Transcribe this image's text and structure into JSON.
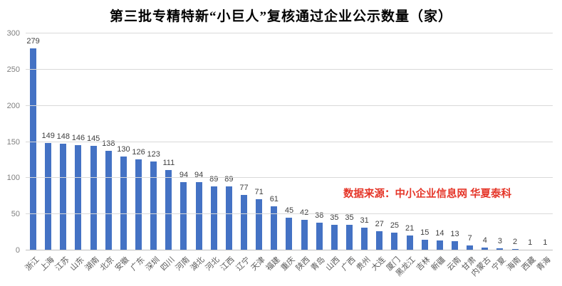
{
  "title": "第三批专精特新“小巨人”复核通过企业公示数量（家）",
  "source_note": "数据来源：中小企业信息网 华夏泰科",
  "colors": {
    "bar": "#4472c4",
    "source_note": "#e53528",
    "grid": "#d9d9d9",
    "axis_line": "#bfbfbf",
    "y_tick_label": "#7f7f7f",
    "category_label": "#595959",
    "value_label": "#3f3f3f",
    "title": "#000000",
    "background": "#ffffff"
  },
  "chart_data": {
    "type": "bar",
    "title": "第三批专精特新“小巨人”复核通过企业公示数量（家）",
    "xlabel": "",
    "ylabel": "",
    "ylim": [
      0,
      300
    ],
    "yticks": [
      0,
      50,
      100,
      150,
      200,
      250,
      300
    ],
    "grid": true,
    "value_labels": true,
    "legend": false,
    "annotation": "数据来源：中小企业信息网 华夏泰科",
    "categories": [
      "浙江",
      "上海",
      "江苏",
      "山东",
      "湖南",
      "北京",
      "安徽",
      "广东",
      "深圳",
      "四川",
      "河南",
      "湖北",
      "河北",
      "江西",
      "辽宁",
      "天津",
      "福建",
      "重庆",
      "陕西",
      "青岛",
      "山西",
      "广西",
      "贵州",
      "大连",
      "厦门",
      "黑龙江",
      "吉林",
      "新疆",
      "云南",
      "甘肃",
      "内蒙古",
      "宁夏",
      "海南",
      "西藏",
      "青海"
    ],
    "values": [
      279,
      149,
      148,
      146,
      145,
      138,
      130,
      126,
      123,
      111,
      94,
      94,
      89,
      89,
      77,
      71,
      61,
      45,
      42,
      38,
      35,
      35,
      31,
      27,
      25,
      21,
      15,
      14,
      13,
      7,
      4,
      3,
      2,
      1,
      1
    ]
  }
}
